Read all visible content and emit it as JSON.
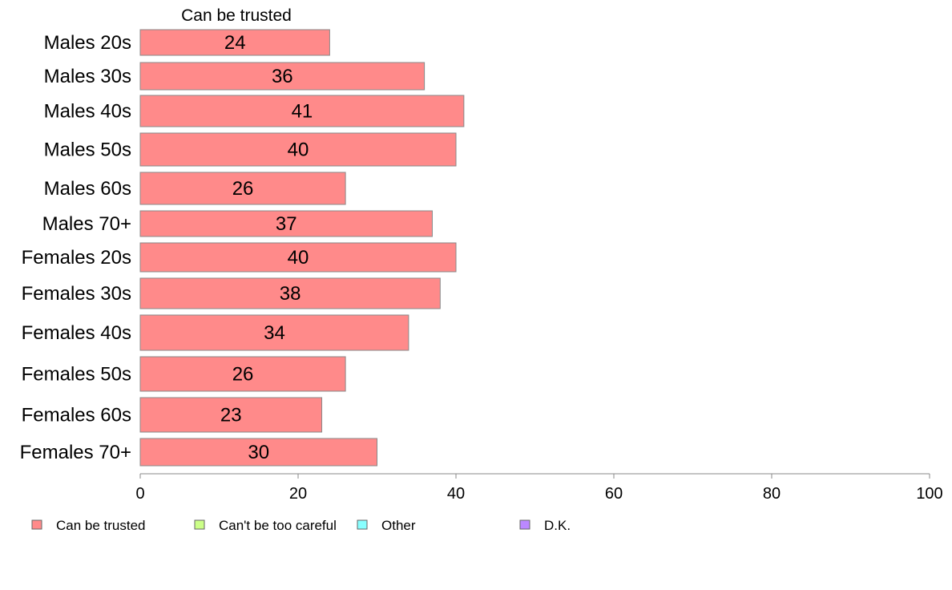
{
  "chart_data": {
    "type": "bar",
    "orientation": "horizontal",
    "header": "Can be trusted",
    "categories": [
      "Males 20s",
      "Males 30s",
      "Males 40s",
      "Males 50s",
      "Males 60s",
      "Males 70+",
      "Females 20s",
      "Females 30s",
      "Females 40s",
      "Females 50s",
      "Females 60s",
      "Females 70+"
    ],
    "series": [
      {
        "name": "Can be trusted",
        "values": [
          24,
          36,
          41,
          40,
          26,
          37,
          40,
          38,
          34,
          26,
          23,
          30
        ],
        "color": "#ff8a8a"
      }
    ],
    "xlim": [
      0,
      100
    ],
    "xticks": [
      0,
      20,
      40,
      60,
      80,
      100
    ],
    "grid": false,
    "legend": {
      "placement": "bottom",
      "items": [
        {
          "label": "Can be trusted",
          "color": "#ff8a8a"
        },
        {
          "label": "Can't be too careful",
          "color": "#ccff88"
        },
        {
          "label": "Other",
          "color": "#88ffff"
        },
        {
          "label": "D.K.",
          "color": "#bb88ff"
        }
      ]
    }
  }
}
